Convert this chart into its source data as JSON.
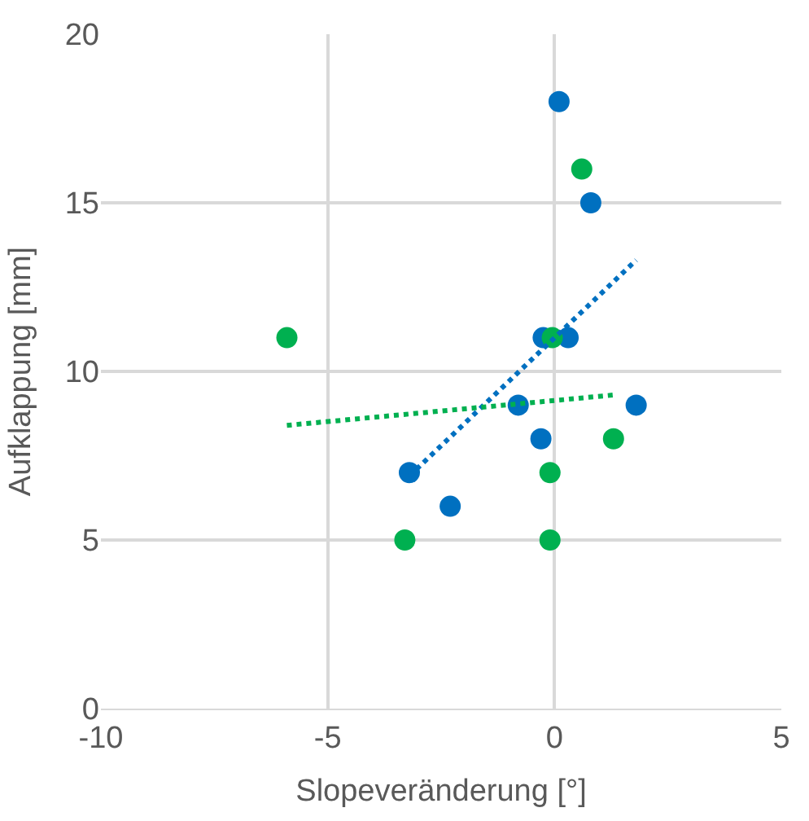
{
  "chart_data": {
    "type": "scatter",
    "xlabel": "Slopeveränderung [°]",
    "ylabel": "Aufklappung [mm]",
    "xlim": [
      -10,
      5
    ],
    "xticks": [
      -10,
      -5,
      0,
      5
    ],
    "ylim": [
      0,
      20
    ],
    "yticks": [
      0,
      5,
      10,
      15,
      20
    ],
    "grid": true,
    "marker": "circle",
    "series": [
      {
        "color": "#0070c0",
        "x": [
          0.1,
          0.8,
          -0.25,
          0.3,
          -0.8,
          -0.3,
          1.8,
          -3.2,
          -2.3
        ],
        "values": [
          18,
          15,
          11,
          11,
          9,
          8,
          9,
          7,
          6
        ]
      },
      {
        "color": "#00b050",
        "x": [
          0.6,
          -5.9,
          -0.05,
          1.3,
          -0.1,
          -0.1,
          -3.3
        ],
        "values": [
          16,
          11,
          11,
          8,
          7,
          5,
          5
        ]
      },
      {
        "type": "line",
        "line_style": "dotted",
        "marker": "none",
        "color": "#0070c0",
        "x": [
          -3.2,
          1.8
        ],
        "values": [
          6.9,
          13.3
        ]
      },
      {
        "type": "line",
        "line_style": "dotted",
        "marker": "none",
        "color": "#00b050",
        "x": [
          -5.9,
          1.3
        ],
        "values": [
          8.4,
          9.3
        ]
      }
    ]
  }
}
